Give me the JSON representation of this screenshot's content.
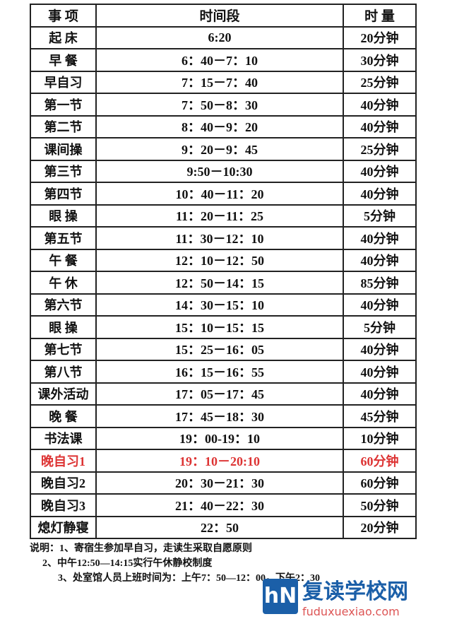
{
  "table": {
    "header": [
      "事 项",
      "时间段",
      "时 量"
    ],
    "rows": [
      [
        "起 床",
        "6:20",
        "20分钟"
      ],
      [
        "早 餐",
        "6：40－7：10",
        "30分钟"
      ],
      [
        "早自习",
        "7：15－7：40",
        "25分钟"
      ],
      [
        "第一节",
        "7：50－8：30",
        "40分钟"
      ],
      [
        "第二节",
        "8：40－9：20",
        "40分钟"
      ],
      [
        "课间操",
        "9：20－9：45",
        "25分钟"
      ],
      [
        "第三节",
        "9:50－10:30",
        "40分钟"
      ],
      [
        "第四节",
        "10：40－11：20",
        "40分钟"
      ],
      [
        "眼 操",
        "11：20－11：25",
        "5分钟"
      ],
      [
        "第五节",
        "11：30－12：10",
        "40分钟"
      ],
      [
        "午 餐",
        "12：10－12：50",
        "40分钟"
      ],
      [
        "午 休",
        "12：50－14：15",
        "85分钟"
      ],
      [
        "第六节",
        "14：30－15：10",
        "40分钟"
      ],
      [
        "眼 操",
        "15：10－15：15",
        "5分钟"
      ],
      [
        "第七节",
        "15：25－16：05",
        "40分钟"
      ],
      [
        "第八节",
        "16：15－16：55",
        "40分钟"
      ],
      [
        "课外活动",
        "17：05－17：45",
        "40分钟"
      ],
      [
        "晚 餐",
        "17：45－18：30",
        "45分钟"
      ],
      [
        "书法课",
        "19：00-19：10",
        "10分钟"
      ],
      [
        "晚自习1",
        "19：10－20:10",
        "60分钟"
      ],
      [
        "晚自习2",
        "20：30－21：30",
        "60分钟"
      ],
      [
        "晚自习3",
        "21：40－22：30",
        "50分钟"
      ],
      [
        "熄灯静寝",
        "22：50",
        "20分钟"
      ]
    ]
  },
  "notes": [
    "说明：1、寄宿生参加早自习，走读生采取自愿原则",
    "2、中午12:50—14:15实行午休静校制度",
    "3、处室馆人员上班时间为：上午7：50—12：00，下午2：30"
  ],
  "watermark": {
    "logo": "hN",
    "name": "复读学校网",
    "url": "fuduxuexiao.com"
  }
}
